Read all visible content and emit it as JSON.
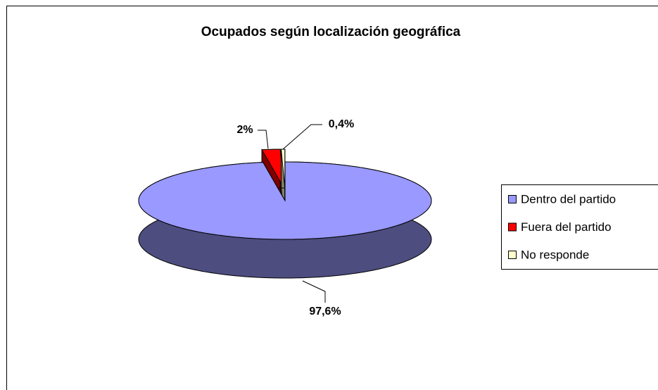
{
  "chart_data": {
    "type": "pie",
    "title": "Ocupados según localización geográfica",
    "categories": [
      "Dentro del partido",
      "Fuera del partido",
      "No responde"
    ],
    "values": [
      97.6,
      2,
      0.4
    ],
    "value_labels": [
      "97,6%",
      "2%",
      "0,4%"
    ],
    "colors": [
      "#9999ff",
      "#ff0000",
      "#ffffcc"
    ],
    "legend": "right"
  }
}
